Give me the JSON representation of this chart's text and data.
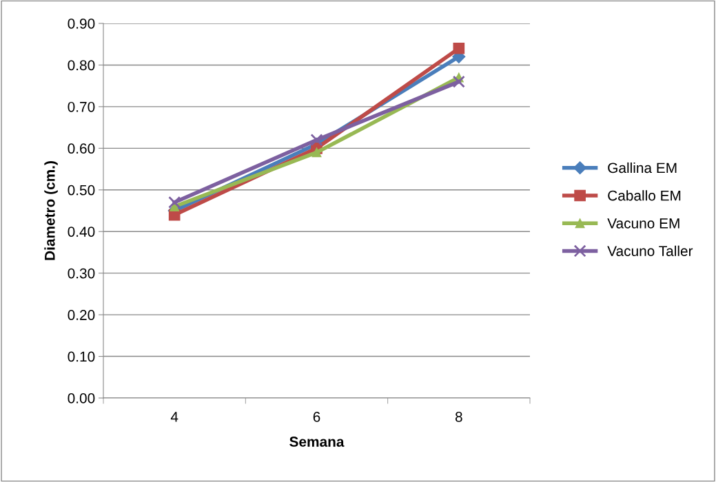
{
  "chart_data": {
    "type": "line",
    "xlabel": "Semana",
    "ylabel": "Diametro (cm.)",
    "categories": [
      "4",
      "6",
      "8"
    ],
    "series": [
      {
        "name": "Gallina EM",
        "color": "#4a7ebb",
        "marker": "diamond",
        "values": [
          0.45,
          0.61,
          0.82
        ]
      },
      {
        "name": "Caballo EM",
        "color": "#be4b48",
        "marker": "square",
        "values": [
          0.44,
          0.6,
          0.84
        ]
      },
      {
        "name": "Vacuno EM",
        "color": "#98b954",
        "marker": "triangle",
        "values": [
          0.46,
          0.59,
          0.77
        ]
      },
      {
        "name": "Vacuno Taller",
        "color": "#7d60a0",
        "marker": "cross",
        "values": [
          0.47,
          0.62,
          0.76
        ]
      }
    ],
    "ylim": [
      0,
      0.9
    ],
    "yticks": [
      {
        "value": 0,
        "label": "0.00"
      },
      {
        "value": 0.1,
        "label": "0.10"
      },
      {
        "value": 0.2,
        "label": "0.20"
      },
      {
        "value": 0.3,
        "label": "0.30"
      },
      {
        "value": 0.4,
        "label": "0.40"
      },
      {
        "value": 0.5,
        "label": "0.50"
      },
      {
        "value": 0.6,
        "label": "0.60"
      },
      {
        "value": 0.7,
        "label": "0.70"
      },
      {
        "value": 0.8,
        "label": "0.80"
      },
      {
        "value": 0.9,
        "label": "0.90"
      }
    ],
    "grid": "y",
    "legend": "right",
    "line_style": "solid"
  }
}
